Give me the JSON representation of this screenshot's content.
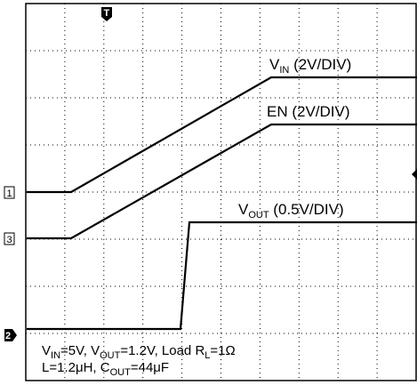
{
  "labels": {
    "vin": {
      "main": "V",
      "sub": "IN",
      "rest": " (2V/DIV)"
    },
    "en": {
      "main": "EN (2V/DIV)"
    },
    "vout": {
      "main": "V",
      "sub": "OUT",
      "rest": " (0.5V/DIV)"
    }
  },
  "markers": {
    "ch1": "1",
    "ch3": "3",
    "ch2": "2",
    "trigger": "T"
  },
  "footnote": {
    "line1": [
      {
        "t": "V"
      },
      {
        "s": "IN"
      },
      {
        "t": "=5V, V"
      },
      {
        "s": "OUT"
      },
      {
        "t": "=1.2V, Load R"
      },
      {
        "s": "L"
      },
      {
        "t": "=1Ω"
      }
    ],
    "line2": [
      {
        "t": "L=1.2μH, C"
      },
      {
        "s": "OUT"
      },
      {
        "t": "=44μF"
      }
    ]
  }
}
